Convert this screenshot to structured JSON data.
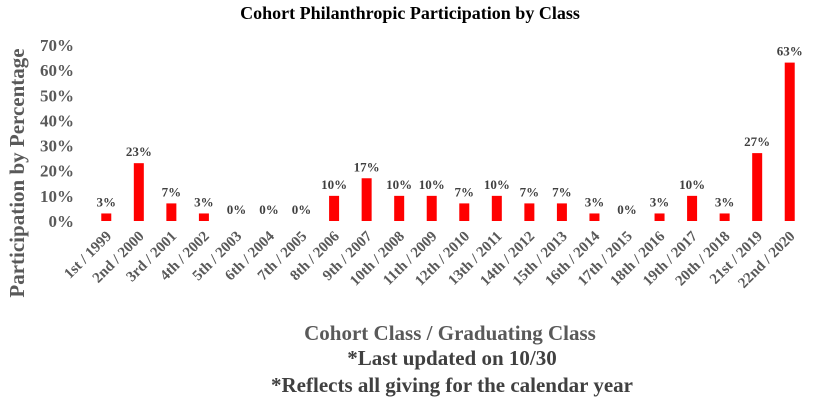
{
  "chart_data": {
    "type": "bar",
    "title": "Cohort Philanthropic Participation by Class",
    "xlabel": "Cohort Class / Graduating Class",
    "ylabel": "Participation by Percentage",
    "notes": [
      "*Last updated on 10/30",
      "*Reflects all giving for the calendar  year"
    ],
    "categories": [
      "1st / 1999",
      "2nd / 2000",
      "3rd / 2001",
      "4th / 2002",
      "5th / 2003",
      "6th / 2004",
      "7th / 2005",
      "8th / 2006",
      "9th / 2007",
      "10th / 2008",
      "11th / 2009",
      "12th / 2010",
      "13th / 2011",
      "14th / 2012",
      "15th / 2013",
      "16th / 2014",
      "17th / 2015",
      "18th / 2016",
      "19th / 2017",
      "20th / 2018",
      "21st / 2019",
      "22nd / 2020"
    ],
    "values": [
      3,
      23,
      7,
      3,
      0,
      0,
      0,
      10,
      17,
      10,
      10,
      7,
      10,
      7,
      7,
      3,
      0,
      3,
      10,
      3,
      27,
      63
    ],
    "data_labels": [
      "3%",
      "23%",
      "7%",
      "3%",
      "0%",
      "0%",
      "0%",
      "10%",
      "17%",
      "10%",
      "10%",
      "7%",
      "10%",
      "7%",
      "7%",
      "3%",
      "0%",
      "3%",
      "10%",
      "3%",
      "27%",
      "63%"
    ],
    "yticks": [
      "0%",
      "10%",
      "20%",
      "30%",
      "40%",
      "50%",
      "60%",
      "70%"
    ],
    "ylim": [
      0,
      70
    ],
    "grid": false,
    "bar_color": "#FF0000"
  }
}
